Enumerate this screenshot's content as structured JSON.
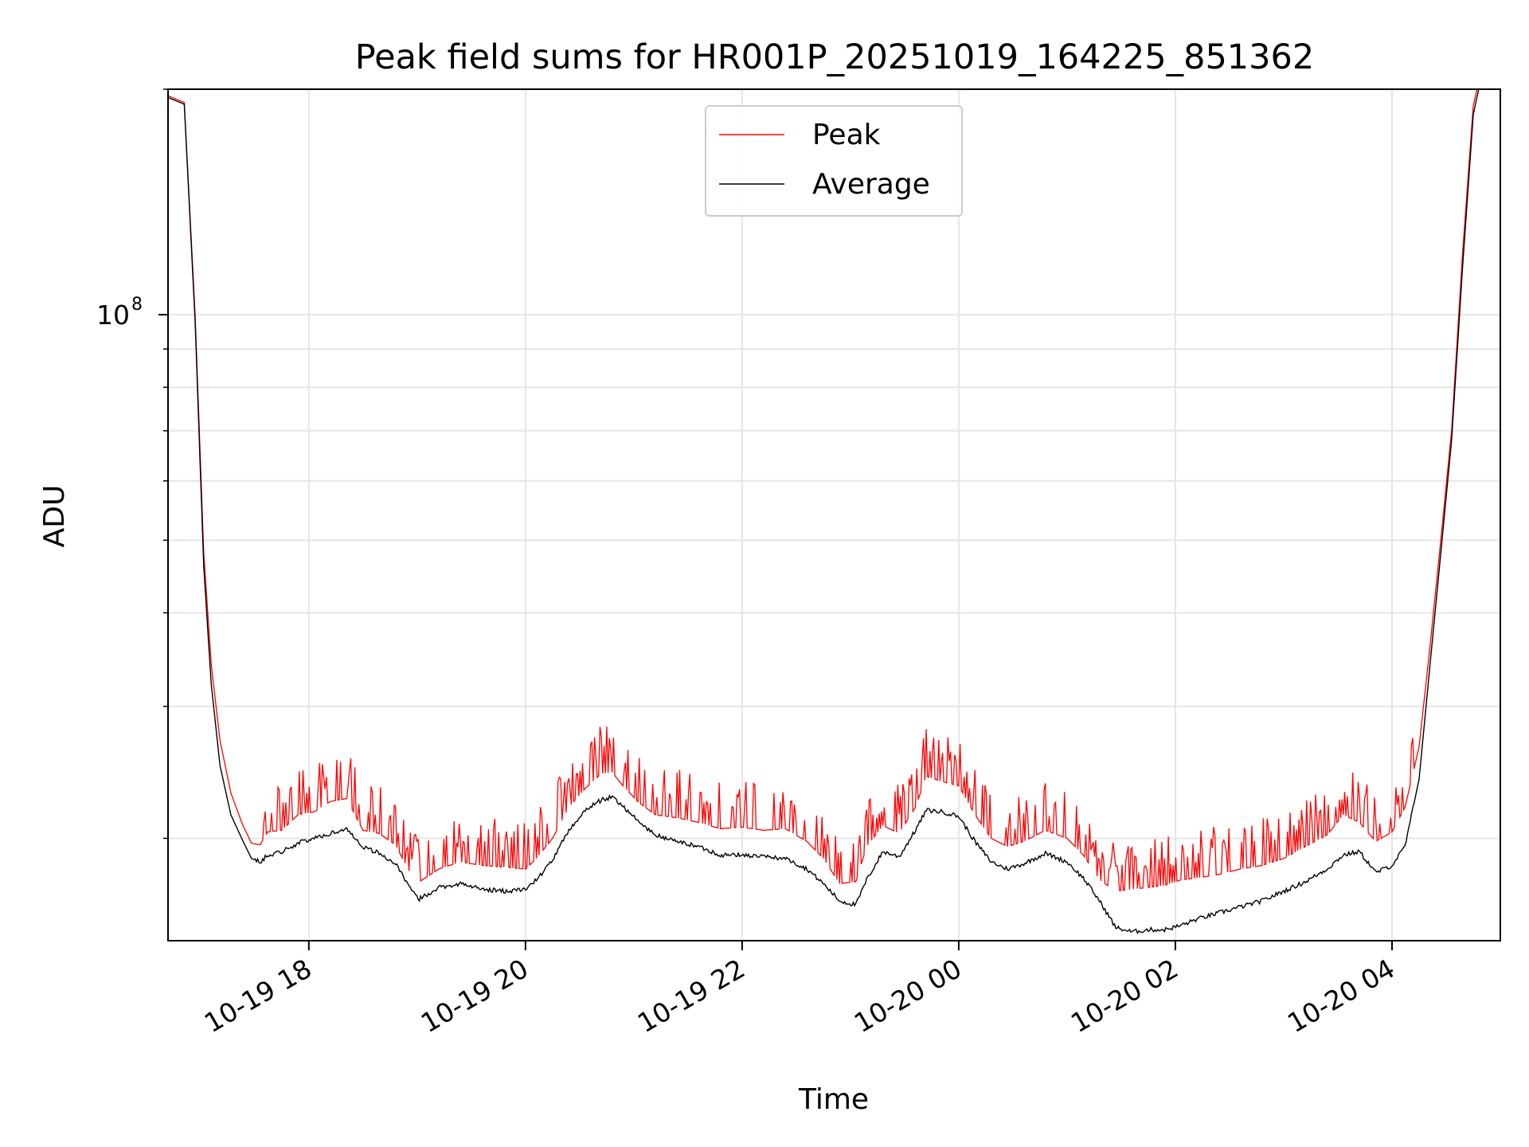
{
  "chart_data": {
    "type": "line",
    "title": "Peak field sums for HR001P_20251019_164225_851362",
    "xlabel": "Time",
    "ylabel": "ADU",
    "yscale": "log",
    "ylim": [
      14600000,
      200000000
    ],
    "xlim_hours": [
      16.7,
      29.0
    ],
    "grid": true,
    "legend_position": "upper center",
    "x_ticks": [
      {
        "hour": 18,
        "label": "10-19 18"
      },
      {
        "hour": 20,
        "label": "10-19 20"
      },
      {
        "hour": 22,
        "label": "10-19 22"
      },
      {
        "hour": 24,
        "label": "10-20 00"
      },
      {
        "hour": 26,
        "label": "10-20 02"
      },
      {
        "hour": 28,
        "label": "10-20 04"
      }
    ],
    "y_major_ticks": [
      {
        "value": 100000000,
        "base": "10",
        "exponent": "8"
      }
    ],
    "y_minor_ticks": [
      20000000,
      30000000,
      40000000,
      50000000,
      60000000,
      70000000,
      80000000,
      90000000,
      200000000
    ],
    "series": [
      {
        "name": "Peak",
        "color": "#ff0000",
        "x_hours": [
          16.7,
          16.85,
          16.95,
          17.03,
          17.1,
          17.18,
          17.28,
          17.38,
          17.47,
          17.55,
          17.62,
          17.75,
          17.9,
          18.05,
          18.2,
          18.35,
          18.5,
          18.65,
          18.8,
          18.95,
          19.02,
          19.2,
          19.4,
          19.6,
          19.8,
          20.0,
          20.1,
          20.25,
          20.4,
          20.55,
          20.7,
          20.8,
          20.9,
          21.05,
          21.2,
          21.4,
          21.6,
          21.8,
          22.0,
          22.2,
          22.4,
          22.6,
          22.75,
          22.9,
          23.05,
          23.15,
          23.3,
          23.45,
          23.6,
          23.7,
          23.85,
          24.0,
          24.15,
          24.3,
          24.45,
          24.6,
          24.8,
          25.0,
          25.15,
          25.3,
          25.45,
          25.6,
          25.75,
          25.9,
          26.05,
          26.2,
          26.4,
          26.6,
          26.8,
          27.0,
          27.2,
          27.4,
          27.55,
          27.7,
          27.85,
          28.0,
          28.12,
          28.25,
          28.35,
          28.45,
          28.55,
          28.65,
          28.75,
          28.8
        ],
        "y": [
          196000000,
          192000000,
          100000000,
          48000000,
          34000000,
          27000000,
          23000000,
          21000000,
          19700000,
          19600000,
          20400000,
          20500000,
          21500000,
          21700000,
          22400000,
          22600000,
          20500000,
          20300000,
          19600000,
          17800000,
          17500000,
          18200000,
          18600000,
          18400000,
          18300000,
          18200000,
          18800000,
          20000000,
          22000000,
          23300000,
          24400000,
          24500000,
          23500000,
          22300000,
          21500000,
          21300000,
          21000000,
          20600000,
          20700000,
          20500000,
          20600000,
          19800000,
          18800000,
          17400000,
          17500000,
          19500000,
          20800000,
          20300000,
          22000000,
          24200000,
          23800000,
          23500000,
          21500000,
          20000000,
          19500000,
          19800000,
          20500000,
          20000000,
          19000000,
          17600000,
          17000000,
          17100000,
          17200000,
          17300000,
          17600000,
          17700000,
          17900000,
          18200000,
          18400000,
          18800000,
          19500000,
          20200000,
          21500000,
          21000000,
          19800000,
          20400000,
          22000000,
          26500000,
          36000000,
          50000000,
          70000000,
          120000000,
          190000000,
          205000000
        ]
      },
      {
        "name": "Average",
        "color": "#000000",
        "x_hours": [
          16.7,
          16.85,
          16.95,
          17.03,
          17.1,
          17.18,
          17.28,
          17.38,
          17.47,
          17.55,
          17.62,
          17.75,
          17.9,
          18.05,
          18.2,
          18.35,
          18.5,
          18.65,
          18.8,
          18.95,
          19.02,
          19.2,
          19.4,
          19.6,
          19.8,
          20.0,
          20.1,
          20.25,
          20.4,
          20.55,
          20.7,
          20.8,
          20.9,
          21.05,
          21.2,
          21.4,
          21.6,
          21.8,
          22.0,
          22.2,
          22.4,
          22.6,
          22.75,
          22.9,
          23.05,
          23.15,
          23.3,
          23.45,
          23.6,
          23.7,
          23.85,
          24.0,
          24.15,
          24.3,
          24.45,
          24.6,
          24.8,
          25.0,
          25.15,
          25.3,
          25.45,
          25.6,
          25.75,
          25.9,
          26.05,
          26.2,
          26.4,
          26.6,
          26.8,
          27.0,
          27.2,
          27.4,
          27.55,
          27.7,
          27.85,
          28.0,
          28.12,
          28.25,
          28.35,
          28.45,
          28.55,
          28.65,
          28.75,
          28.8
        ],
        "y": [
          195000000,
          191000000,
          98000000,
          46000000,
          32000000,
          25000000,
          21500000,
          20000000,
          18800000,
          18600000,
          19000000,
          19200000,
          19700000,
          20000000,
          20300000,
          20600000,
          19500000,
          19100000,
          18500000,
          17000000,
          16600000,
          17200000,
          17400000,
          17100000,
          17000000,
          17100000,
          17600000,
          18700000,
          20500000,
          21800000,
          22500000,
          22700000,
          22100000,
          21000000,
          20200000,
          19800000,
          19500000,
          19000000,
          19000000,
          18900000,
          18800000,
          18200000,
          17400000,
          16500000,
          16300000,
          17600000,
          19200000,
          18900000,
          20500000,
          21800000,
          21700000,
          21400000,
          19800000,
          18600000,
          18200000,
          18500000,
          19100000,
          18600000,
          17700000,
          16500000,
          15200000,
          15000000,
          15100000,
          15100000,
          15300000,
          15600000,
          15900000,
          16200000,
          16500000,
          17000000,
          17500000,
          18200000,
          19000000,
          19200000,
          18000000,
          18400000,
          19500000,
          24000000,
          34000000,
          48000000,
          68000000,
          115000000,
          185000000,
          200000000
        ]
      }
    ]
  }
}
